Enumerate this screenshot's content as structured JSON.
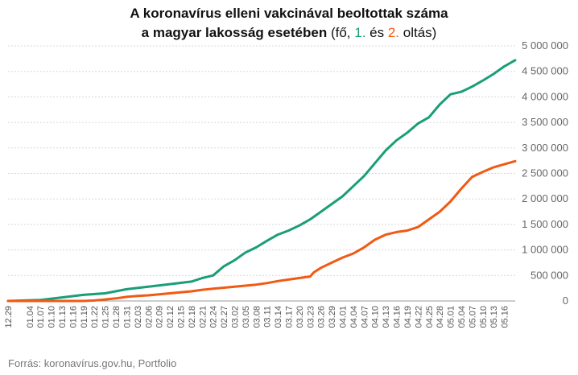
{
  "chart_data": {
    "type": "line",
    "title_line1": "A koronavírus elleni vakcinával beoltottak száma",
    "title_line2_bold": "a magyar lakosság esetében",
    "title_line2_open": " (fő, ",
    "title_line2_s1": "1.",
    "title_line2_mid": " és ",
    "title_line2_s2": "2.",
    "title_line2_close": " oltás)",
    "source": "Forrás: koronavírus.gov.hu, Portfolio",
    "ylim": [
      0,
      5000000
    ],
    "yticks": [
      {
        "value": 0,
        "label": "0"
      },
      {
        "value": 500000,
        "label": "500 000"
      },
      {
        "value": 1000000,
        "label": "1 000 000"
      },
      {
        "value": 1500000,
        "label": "1 500 000"
      },
      {
        "value": 2000000,
        "label": "2 000 000"
      },
      {
        "value": 2500000,
        "label": "2 500 000"
      },
      {
        "value": 3000000,
        "label": "3 000 000"
      },
      {
        "value": 3500000,
        "label": "3 500 000"
      },
      {
        "value": 4000000,
        "label": "4 000 000"
      },
      {
        "value": 4500000,
        "label": "4 500 000"
      },
      {
        "value": 5000000,
        "label": "5 000 000"
      }
    ],
    "grid": true,
    "xticks": [
      "12.29",
      "01.04",
      "01.07",
      "01.10",
      "01.13",
      "01.16",
      "01.19",
      "01.22",
      "01.25",
      "01.28",
      "01.31",
      "02.03",
      "02.06",
      "02.09",
      "02.12",
      "02.15",
      "02.18",
      "02.21",
      "02.24",
      "02.27",
      "03.02",
      "03.05",
      "03.08",
      "03.11",
      "03.14",
      "03.17",
      "03.20",
      "03.23",
      "03.26",
      "03.29",
      "04.01",
      "04.04",
      "04.07",
      "04.10",
      "04.13",
      "04.16",
      "04.19",
      "04.22",
      "04.25",
      "04.28",
      "05.01",
      "05.04",
      "05.07",
      "05.10",
      "05.13",
      "05.16"
    ],
    "series": [
      {
        "name": "1. oltás",
        "color": "#1a9e77",
        "points": [
          [
            "12.29",
            0
          ],
          [
            "01.07",
            20000
          ],
          [
            "01.13",
            70000
          ],
          [
            "01.19",
            120000
          ],
          [
            "01.25",
            150000
          ],
          [
            "01.31",
            230000
          ],
          [
            "02.06",
            280000
          ],
          [
            "02.12",
            330000
          ],
          [
            "02.18",
            380000
          ],
          [
            "02.21",
            450000
          ],
          [
            "02.24",
            500000
          ],
          [
            "02.27",
            680000
          ],
          [
            "03.02",
            800000
          ],
          [
            "03.05",
            950000
          ],
          [
            "03.08",
            1050000
          ],
          [
            "03.11",
            1180000
          ],
          [
            "03.14",
            1300000
          ],
          [
            "03.17",
            1380000
          ],
          [
            "03.20",
            1480000
          ],
          [
            "03.23",
            1600000
          ],
          [
            "03.26",
            1750000
          ],
          [
            "03.29",
            1900000
          ],
          [
            "04.01",
            2050000
          ],
          [
            "04.04",
            2250000
          ],
          [
            "04.07",
            2450000
          ],
          [
            "04.10",
            2700000
          ],
          [
            "04.13",
            2950000
          ],
          [
            "04.16",
            3150000
          ],
          [
            "04.19",
            3300000
          ],
          [
            "04.22",
            3480000
          ],
          [
            "04.25",
            3600000
          ],
          [
            "04.28",
            3850000
          ],
          [
            "05.01",
            4050000
          ],
          [
            "05.04",
            4100000
          ],
          [
            "05.07",
            4200000
          ],
          [
            "05.10",
            4320000
          ],
          [
            "05.13",
            4450000
          ],
          [
            "05.16",
            4600000
          ],
          [
            "05.19",
            4720000
          ]
        ]
      },
      {
        "name": "2. oltás",
        "color": "#f05a14",
        "points": [
          [
            "12.29",
            0
          ],
          [
            "01.19",
            0
          ],
          [
            "01.22",
            10000
          ],
          [
            "01.25",
            30000
          ],
          [
            "01.28",
            50000
          ],
          [
            "01.31",
            80000
          ],
          [
            "02.03",
            100000
          ],
          [
            "02.06",
            110000
          ],
          [
            "02.09",
            130000
          ],
          [
            "02.12",
            150000
          ],
          [
            "02.15",
            170000
          ],
          [
            "02.18",
            190000
          ],
          [
            "02.21",
            220000
          ],
          [
            "02.24",
            240000
          ],
          [
            "02.27",
            260000
          ],
          [
            "03.02",
            280000
          ],
          [
            "03.05",
            300000
          ],
          [
            "03.08",
            320000
          ],
          [
            "03.11",
            350000
          ],
          [
            "03.14",
            390000
          ],
          [
            "03.17",
            420000
          ],
          [
            "03.20",
            450000
          ],
          [
            "03.23",
            480000
          ],
          [
            "03.24",
            560000
          ],
          [
            "03.26",
            650000
          ],
          [
            "03.29",
            750000
          ],
          [
            "04.01",
            850000
          ],
          [
            "04.04",
            930000
          ],
          [
            "04.07",
            1050000
          ],
          [
            "04.10",
            1200000
          ],
          [
            "04.13",
            1300000
          ],
          [
            "04.16",
            1350000
          ],
          [
            "04.19",
            1380000
          ],
          [
            "04.22",
            1450000
          ],
          [
            "04.25",
            1600000
          ],
          [
            "04.28",
            1750000
          ],
          [
            "05.01",
            1950000
          ],
          [
            "05.04",
            2200000
          ],
          [
            "05.07",
            2430000
          ],
          [
            "05.10",
            2530000
          ],
          [
            "05.13",
            2620000
          ],
          [
            "05.16",
            2680000
          ],
          [
            "05.19",
            2740000
          ]
        ]
      }
    ]
  }
}
